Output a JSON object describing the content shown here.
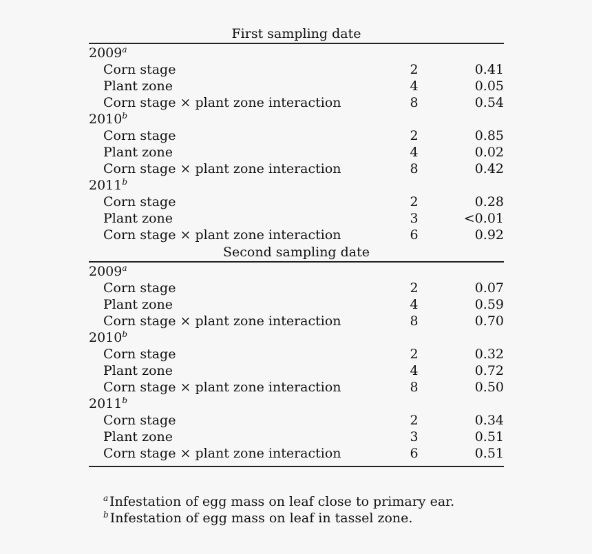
{
  "sections": [
    {
      "heading": "First sampling date",
      "years": [
        {
          "year": "2009",
          "sup": "a",
          "rows": [
            {
              "label": "Corn stage",
              "df": "2",
              "p": "0.41"
            },
            {
              "label": "Plant zone",
              "df": "4",
              "p": "0.05"
            },
            {
              "label": "Corn stage × plant zone interaction",
              "df": "8",
              "p": "0.54"
            }
          ]
        },
        {
          "year": "2010",
          "sup": "b",
          "rows": [
            {
              "label": "Corn stage",
              "df": "2",
              "p": "0.85"
            },
            {
              "label": "Plant zone",
              "df": "4",
              "p": "0.02"
            },
            {
              "label": "Corn stage × plant zone interaction",
              "df": "8",
              "p": "0.42"
            }
          ]
        },
        {
          "year": "2011",
          "sup": "b",
          "rows": [
            {
              "label": "Corn stage",
              "df": "2",
              "p": "0.28"
            },
            {
              "label": "Plant zone",
              "df": "3",
              "p": "<0.01"
            },
            {
              "label": "Corn stage × plant zone interaction",
              "df": "6",
              "p": "0.92"
            }
          ]
        }
      ]
    },
    {
      "heading": "Second sampling date",
      "years": [
        {
          "year": "2009",
          "sup": "a",
          "rows": [
            {
              "label": "Corn stage",
              "df": "2",
              "p": "0.07"
            },
            {
              "label": "Plant zone",
              "df": "4",
              "p": "0.59"
            },
            {
              "label": "Corn stage × plant zone interaction",
              "df": "8",
              "p": "0.70"
            }
          ]
        },
        {
          "year": "2010",
          "sup": "b",
          "rows": [
            {
              "label": "Corn stage",
              "df": "2",
              "p": "0.32"
            },
            {
              "label": "Plant zone",
              "df": "4",
              "p": "0.72"
            },
            {
              "label": "Corn stage × plant zone interaction",
              "df": "8",
              "p": "0.50"
            }
          ]
        },
        {
          "year": "2011",
          "sup": "b",
          "rows": [
            {
              "label": "Corn stage",
              "df": "2",
              "p": "0.34"
            },
            {
              "label": "Plant zone",
              "df": "3",
              "p": "0.51"
            },
            {
              "label": "Corn stage × plant zone interaction",
              "df": "6",
              "p": "0.51"
            }
          ]
        }
      ]
    }
  ],
  "footnotes": [
    {
      "mark": "a",
      "text": "Infestation of egg mass on leaf close to primary ear."
    },
    {
      "mark": "b",
      "text": "Infestation of egg mass on leaf in tassel zone."
    }
  ]
}
